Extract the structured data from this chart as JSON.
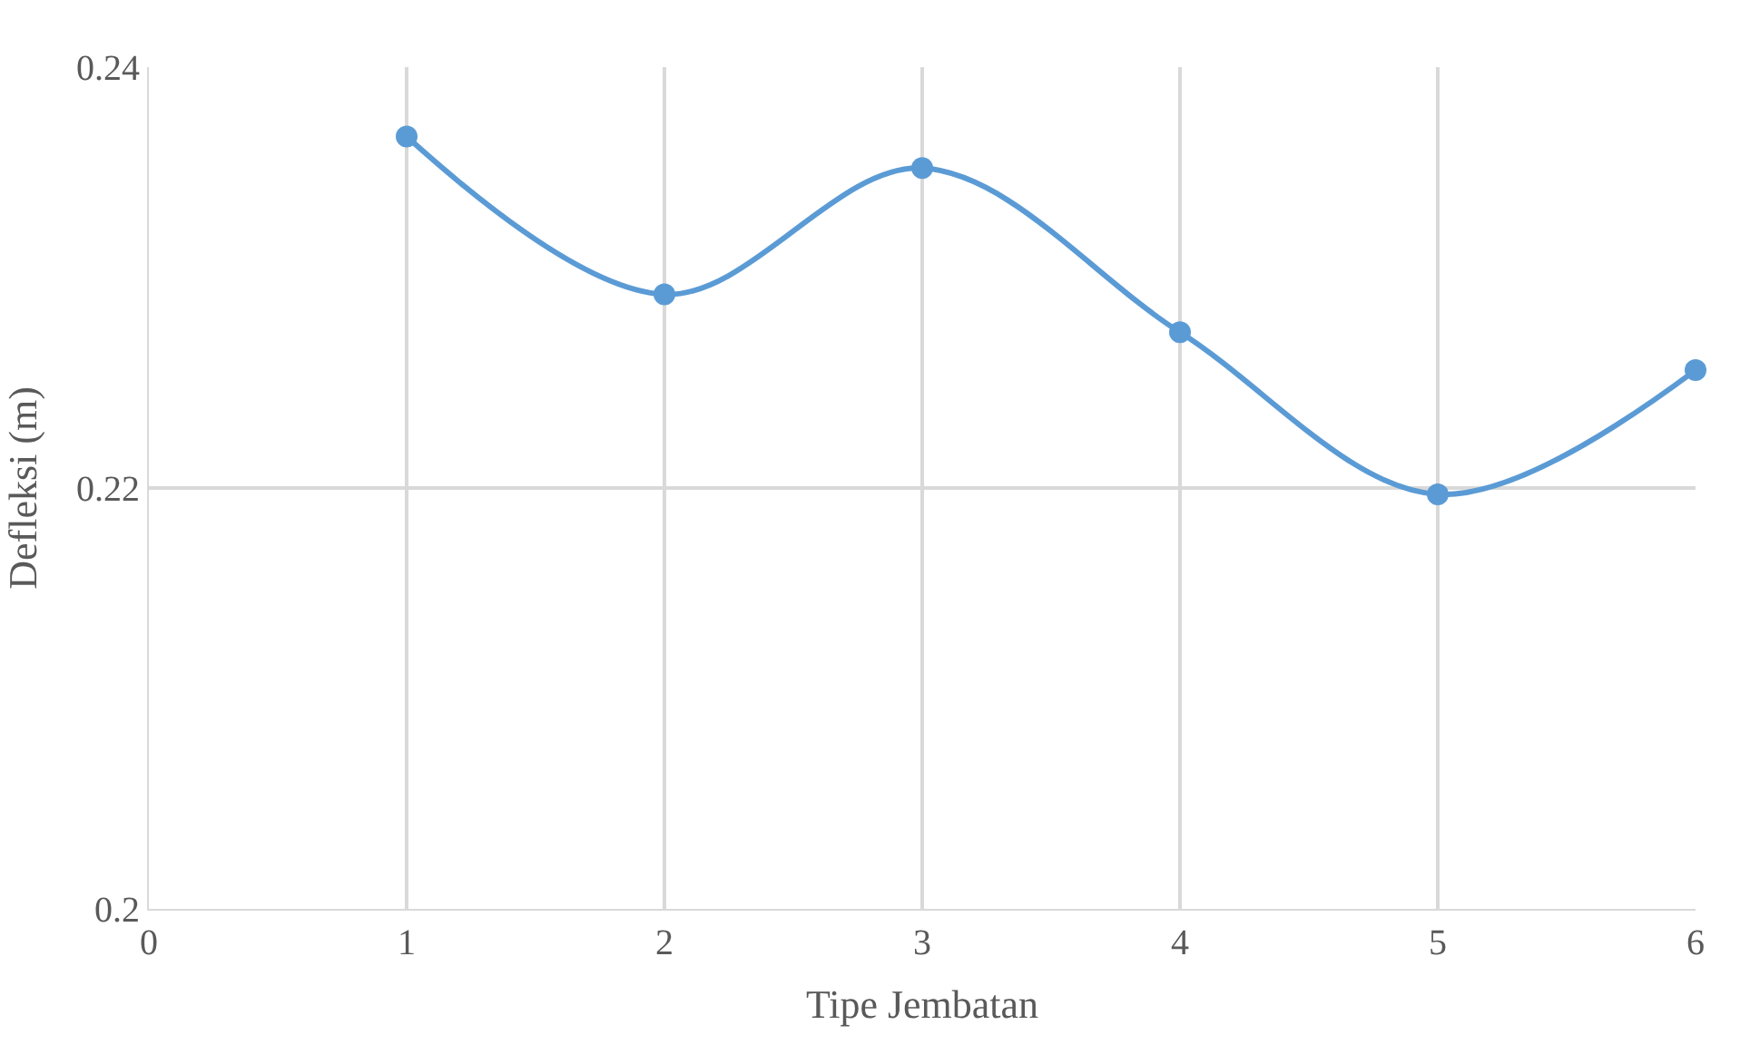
{
  "chart_data": {
    "type": "line",
    "xlabel": "Tipe Jembatan",
    "ylabel": "Defleksi (m)",
    "x": [
      1,
      2,
      3,
      4,
      5,
      6
    ],
    "series": [
      {
        "color": "#5b9bd5",
        "values": [
          0.2367,
          0.2292,
          0.2352,
          0.2274,
          0.2197,
          0.2256
        ]
      }
    ],
    "xlim": [
      0,
      6
    ],
    "xticks": [
      0,
      1,
      2,
      3,
      4,
      5,
      6
    ],
    "ylim": [
      0.2,
      0.24
    ],
    "yticks": [
      0.2,
      0.22,
      0.24
    ],
    "grid": true,
    "marker": "circle",
    "line_style": "solid",
    "legend": false
  }
}
